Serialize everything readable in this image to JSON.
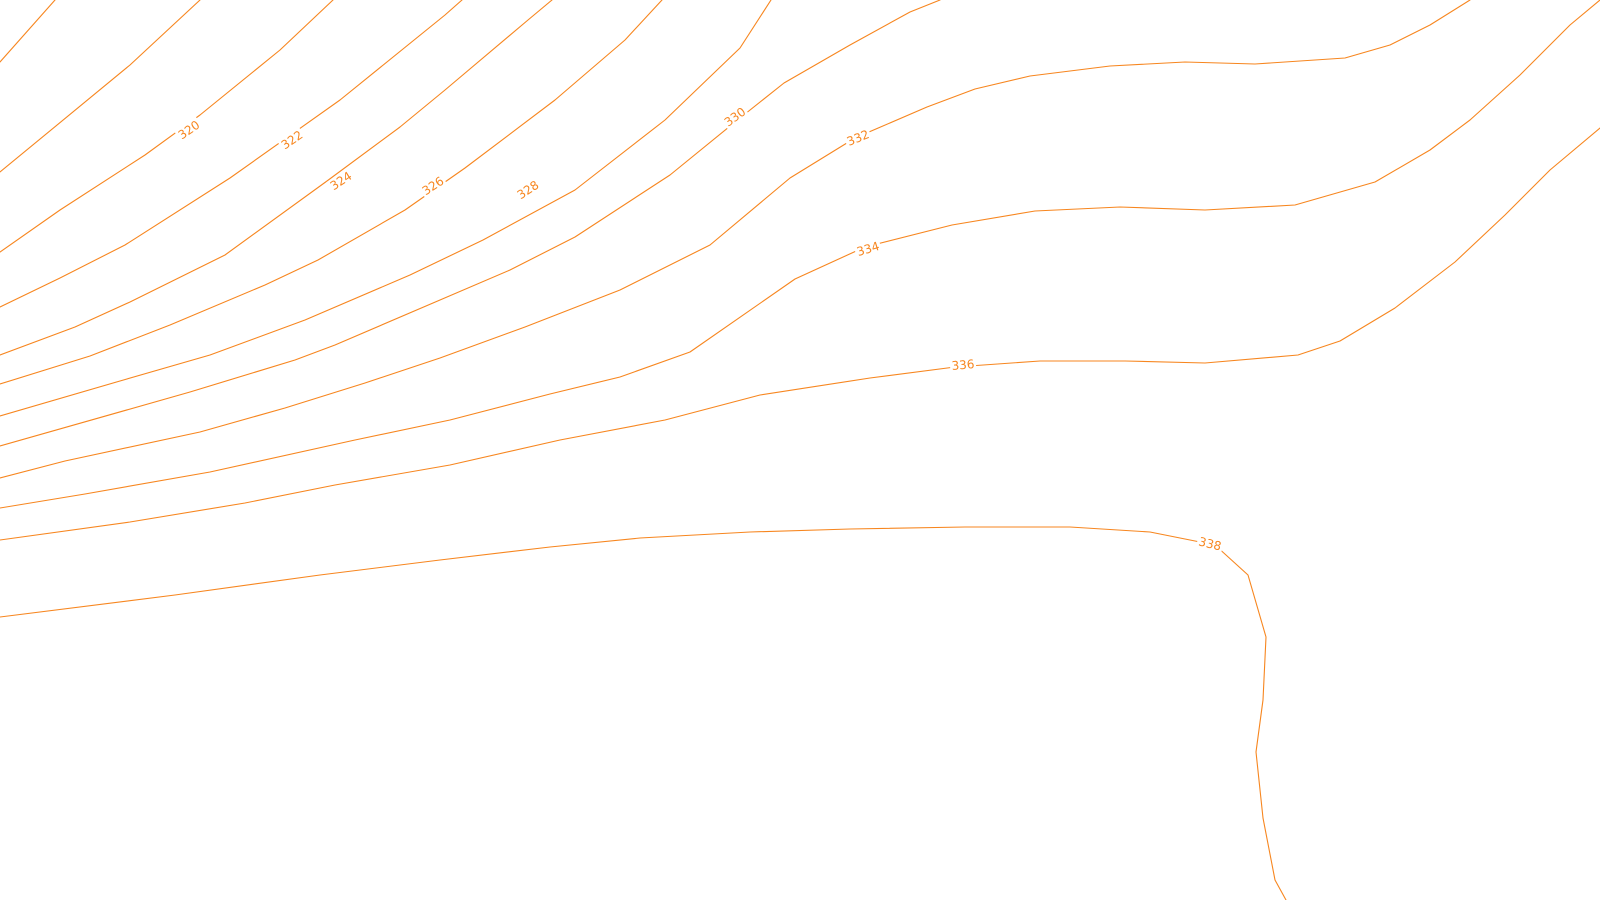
{
  "map": {
    "type": "contour-map",
    "line_color": "#f7861f",
    "background_color": "#ffffff",
    "contour_interval": 2,
    "labels": [
      "320",
      "322",
      "324",
      "326",
      "328",
      "330",
      "332",
      "334",
      "336",
      "338"
    ]
  }
}
